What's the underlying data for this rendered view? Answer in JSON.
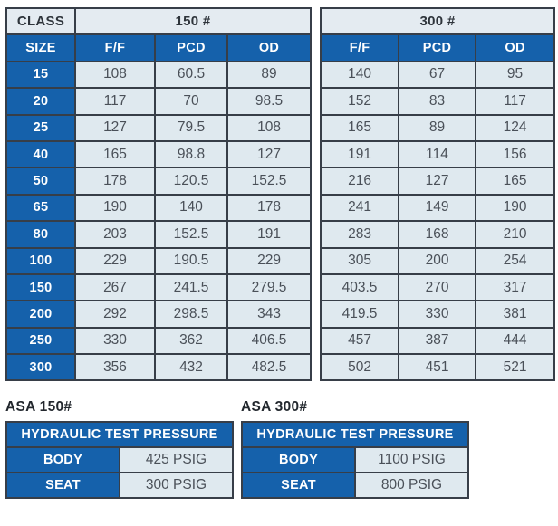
{
  "colors": {
    "blue": "#1561AB",
    "light_cell": "#DFE9EF",
    "border": "#373E48",
    "dark_text": "#4A5058",
    "white_text": "#FFFFFF"
  },
  "main_table": {
    "class_label": "CLASS",
    "size_label": "SIZE",
    "groups": [
      {
        "class": "150 #",
        "columns": [
          "F/F",
          "PCD",
          "OD"
        ]
      },
      {
        "class": "300 #",
        "columns": [
          "F/F",
          "PCD",
          "OD"
        ]
      }
    ],
    "rows": [
      {
        "size": "15",
        "c150": [
          "108",
          "60.5",
          "89"
        ],
        "c300": [
          "140",
          "67",
          "95"
        ]
      },
      {
        "size": "20",
        "c150": [
          "117",
          "70",
          "98.5"
        ],
        "c300": [
          "152",
          "83",
          "117"
        ]
      },
      {
        "size": "25",
        "c150": [
          "127",
          "79.5",
          "108"
        ],
        "c300": [
          "165",
          "89",
          "124"
        ]
      },
      {
        "size": "40",
        "c150": [
          "165",
          "98.8",
          "127"
        ],
        "c300": [
          "191",
          "114",
          "156"
        ]
      },
      {
        "size": "50",
        "c150": [
          "178",
          "120.5",
          "152.5"
        ],
        "c300": [
          "216",
          "127",
          "165"
        ]
      },
      {
        "size": "65",
        "c150": [
          "190",
          "140",
          "178"
        ],
        "c300": [
          "241",
          "149",
          "190"
        ]
      },
      {
        "size": "80",
        "c150": [
          "203",
          "152.5",
          "191"
        ],
        "c300": [
          "283",
          "168",
          "210"
        ]
      },
      {
        "size": "100",
        "c150": [
          "229",
          "190.5",
          "229"
        ],
        "c300": [
          "305",
          "200",
          "254"
        ]
      },
      {
        "size": "150",
        "c150": [
          "267",
          "241.5",
          "279.5"
        ],
        "c300": [
          "403.5",
          "270",
          "317"
        ]
      },
      {
        "size": "200",
        "c150": [
          "292",
          "298.5",
          "343"
        ],
        "c300": [
          "419.5",
          "330",
          "381"
        ]
      },
      {
        "size": "250",
        "c150": [
          "330",
          "362",
          "406.5"
        ],
        "c300": [
          "457",
          "387",
          "444"
        ]
      },
      {
        "size": "300",
        "c150": [
          "356",
          "432",
          "482.5"
        ],
        "c300": [
          "502",
          "451",
          "521"
        ]
      }
    ]
  },
  "pressure_tables": [
    {
      "title": "ASA 150#",
      "header": "HYDRAULIC TEST PRESSURE",
      "rows": [
        {
          "label": "BODY",
          "value": "425 PSIG"
        },
        {
          "label": "SEAT",
          "value": "300 PSIG"
        }
      ]
    },
    {
      "title": "ASA 300#",
      "header": "HYDRAULIC TEST PRESSURE",
      "rows": [
        {
          "label": "BODY",
          "value": "1100 PSIG"
        },
        {
          "label": "SEAT",
          "value": "800 PSIG"
        }
      ]
    }
  ]
}
